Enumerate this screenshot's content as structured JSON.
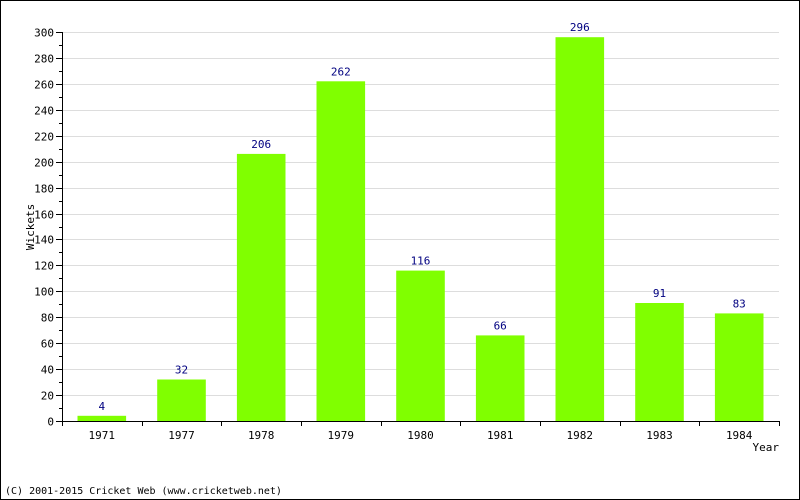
{
  "chart_data": {
    "type": "bar",
    "categories": [
      "1971",
      "1977",
      "1978",
      "1979",
      "1980",
      "1981",
      "1982",
      "1983",
      "1984"
    ],
    "values": [
      4,
      32,
      206,
      262,
      116,
      66,
      296,
      91,
      83
    ],
    "title": "",
    "xlabel": "Year",
    "ylabel": "Wickets",
    "ylim": [
      0,
      300
    ],
    "yticks": [
      0,
      20,
      40,
      60,
      80,
      100,
      120,
      140,
      160,
      180,
      200,
      220,
      240,
      260,
      280,
      300
    ],
    "grid": true,
    "bar_color": "#80ff00",
    "data_label_color": "#000080"
  },
  "footer": {
    "copyright": "(C) 2001-2015 Cricket Web (www.cricketweb.net)"
  }
}
